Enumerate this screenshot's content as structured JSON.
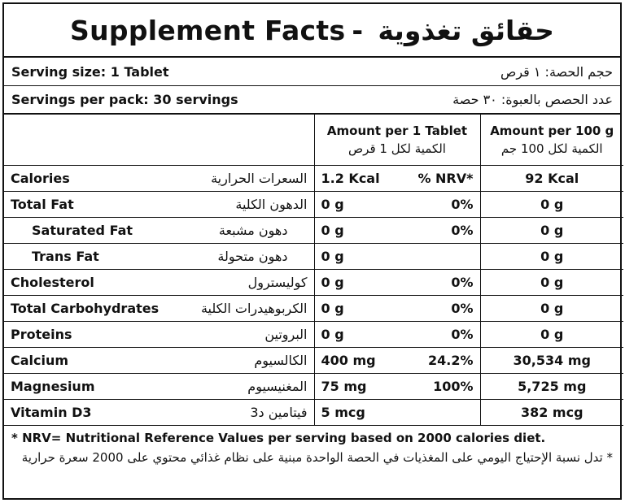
{
  "title": {
    "en": "Supplement Facts",
    "separator": "-",
    "ar": "حقائق تغذوية"
  },
  "serving_size": {
    "en": "Serving size: 1 Tablet",
    "ar": "حجم الحصة: ١ قرص"
  },
  "servings_per_pack": {
    "en": "Servings per pack: 30 servings",
    "ar": "عدد الحصص بالعبوة: ٣٠ حصة"
  },
  "headers": {
    "per_tablet_en": "Amount per 1 Tablet",
    "per_tablet_ar": "الكمية لكل 1 قرص",
    "per_100g_en": "Amount per 100 g",
    "per_100g_ar": "الكمية لكل 100 جم"
  },
  "rows": [
    {
      "en": "Calories",
      "ar": "السعرات الحرارية",
      "amount": "1.2 Kcal",
      "nrv": "% NRV*",
      "per100": "92 Kcal"
    },
    {
      "en": "Total Fat",
      "ar": "الدهون الكلية",
      "amount": "0 g",
      "nrv": "0%",
      "per100": "0 g"
    },
    {
      "en": "Saturated Fat",
      "ar": "دهون مشبعة",
      "amount": "0 g",
      "nrv": "0%",
      "per100": "0 g"
    },
    {
      "en": "Trans Fat",
      "ar": "دهون متحولة",
      "amount": "0 g",
      "nrv": "",
      "per100": "0 g"
    },
    {
      "en": "Cholesterol",
      "ar": "كوليسترول",
      "amount": "0 g",
      "nrv": "0%",
      "per100": "0 g"
    },
    {
      "en": "Total Carbohydrates",
      "ar": "الكربوهيدرات الكلية",
      "amount": "0 g",
      "nrv": "0%",
      "per100": "0 g"
    },
    {
      "en": "Proteins",
      "ar": "البروتين",
      "amount": "0 g",
      "nrv": "0%",
      "per100": "0 g"
    },
    {
      "en": "Calcium",
      "ar": "الكالسيوم",
      "amount": "400 mg",
      "nrv": "24.2%",
      "per100": "30,534 mg"
    },
    {
      "en": "Magnesium",
      "ar": "المغنيسيوم",
      "amount": "75 mg",
      "nrv": "100%",
      "per100": "5,725 mg"
    },
    {
      "en": "Vitamin D3",
      "ar": "فيتامين د3",
      "amount": "5 mcg",
      "nrv": "",
      "per100": "382 mcg"
    }
  ],
  "footnote": {
    "en": "* NRV= Nutritional Reference Values per serving based on 2000 calories diet.",
    "ar": "* تدل نسبة الإحتياج اليومي على المغذيات في الحصة الواحدة مبنية على نظام غذائي محتوي على 2000 سعرة حرارية"
  }
}
